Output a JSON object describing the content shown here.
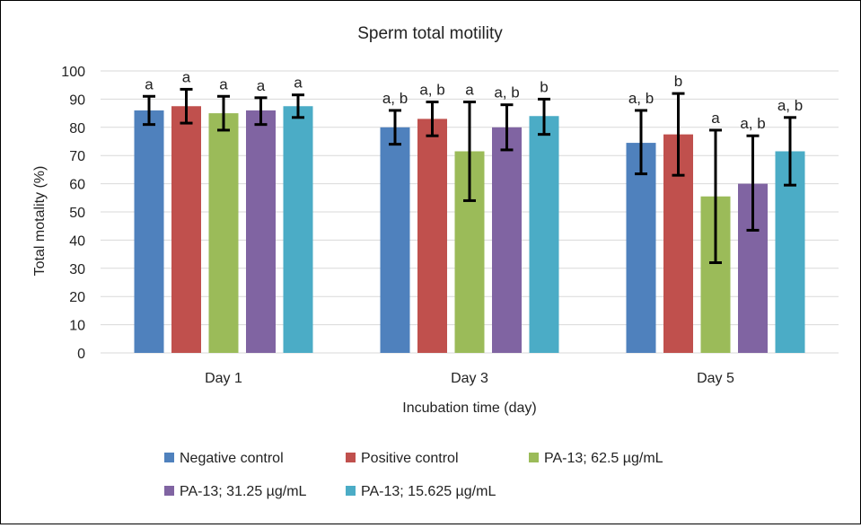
{
  "chart_data": {
    "type": "bar",
    "title": "Sperm total motility",
    "xlabel": "Incubation time (day)",
    "ylabel": "Total motality (%)",
    "ylim": [
      0,
      100
    ],
    "yticks": [
      0,
      10,
      20,
      30,
      40,
      50,
      60,
      70,
      80,
      90,
      100
    ],
    "grid": true,
    "legend_position": "bottom",
    "categories": [
      "Day 1",
      "Day 3",
      "Day 5"
    ],
    "series": [
      {
        "name": "Negative control",
        "color": "#4F81BD",
        "values": [
          86,
          80,
          74.5
        ],
        "err_low": [
          81,
          74,
          63.5
        ],
        "err_high": [
          91,
          86,
          86
        ],
        "labels": [
          "a",
          "a, b",
          "a, b"
        ]
      },
      {
        "name": "Positive control",
        "color": "#C0504D",
        "values": [
          87.5,
          83,
          77.5
        ],
        "err_low": [
          81.5,
          77,
          63
        ],
        "err_high": [
          93.5,
          89,
          92
        ],
        "labels": [
          "a",
          "a, b",
          "b"
        ]
      },
      {
        "name": "PA-13; 62.5 µg/mL",
        "color": "#9BBB59",
        "values": [
          85,
          71.5,
          55.5
        ],
        "err_low": [
          79,
          54,
          32
        ],
        "err_high": [
          91,
          89,
          79
        ],
        "labels": [
          "a",
          "a",
          "a"
        ]
      },
      {
        "name": "PA-13; 31.25 µg/mL",
        "color": "#8064A2",
        "values": [
          86,
          80,
          60
        ],
        "err_low": [
          81,
          72,
          43.5
        ],
        "err_high": [
          90.5,
          88,
          77
        ],
        "labels": [
          "a",
          "a, b",
          "a, b"
        ]
      },
      {
        "name": "PA-13; 15.625 µg/mL",
        "color": "#4BACC6",
        "values": [
          87.5,
          84,
          71.5
        ],
        "err_low": [
          83.5,
          77.5,
          59.5
        ],
        "err_high": [
          91.5,
          90,
          83.5
        ],
        "labels": [
          "a",
          "b",
          "a, b"
        ]
      }
    ]
  }
}
